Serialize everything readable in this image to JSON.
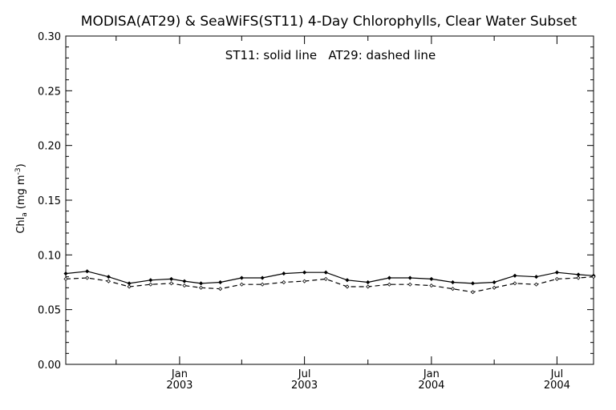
{
  "chart_data": {
    "type": "line",
    "title": "MODISA(AT29) & SeaWiFS(ST11) 4-Day Chlorophylls, Clear Water Subset",
    "annotation": "ST11: solid line   AT29: dashed line",
    "ylabel": "Chl",
    "ylabel_sub": "a",
    "ylabel_units": "(mg m",
    "ylabel_sup": "-3",
    "ylabel_close": ")",
    "ylim": [
      0.0,
      0.3
    ],
    "yticks": [
      "0.00",
      "0.05",
      "0.10",
      "0.15",
      "0.20",
      "0.25",
      "0.30"
    ],
    "xlim": [
      "2002-07-20",
      "2004-08-23"
    ],
    "xticks": [
      {
        "month": "Jan",
        "year": "2003",
        "date": "2003-01-01"
      },
      {
        "month": "Jul",
        "year": "2003",
        "date": "2003-07-01"
      },
      {
        "month": "Jan",
        "year": "2004",
        "date": "2004-01-01"
      },
      {
        "month": "Jul",
        "year": "2004",
        "date": "2004-07-01"
      }
    ],
    "x_minor_dates": [
      "2002-10-01",
      "2003-04-01",
      "2003-10-01",
      "2004-04-01"
    ],
    "grid": false,
    "series": [
      {
        "name": "ST11",
        "style": "solid",
        "x": [
          "2002-07-20",
          "2002-08-20",
          "2002-09-20",
          "2002-10-20",
          "2002-11-20",
          "2002-12-20",
          "2003-01-08",
          "2003-02-01",
          "2003-03-01",
          "2003-04-01",
          "2003-05-01",
          "2003-06-01",
          "2003-07-01",
          "2003-08-01",
          "2003-09-01",
          "2003-10-01",
          "2003-11-01",
          "2003-12-01",
          "2004-01-01",
          "2004-02-01",
          "2004-03-01",
          "2004-04-01",
          "2004-05-01",
          "2004-06-01",
          "2004-07-01",
          "2004-08-01",
          "2004-08-23"
        ],
        "values": [
          0.083,
          0.085,
          0.08,
          0.074,
          0.077,
          0.078,
          0.076,
          0.074,
          0.075,
          0.079,
          0.079,
          0.083,
          0.084,
          0.084,
          0.077,
          0.075,
          0.079,
          0.079,
          0.078,
          0.075,
          0.074,
          0.075,
          0.081,
          0.08,
          0.084,
          0.082,
          0.081
        ]
      },
      {
        "name": "AT29",
        "style": "dashed",
        "x": [
          "2002-07-20",
          "2002-08-20",
          "2002-09-20",
          "2002-10-20",
          "2002-11-20",
          "2002-12-20",
          "2003-01-08",
          "2003-02-01",
          "2003-03-01",
          "2003-04-01",
          "2003-05-01",
          "2003-06-01",
          "2003-07-01",
          "2003-08-01",
          "2003-09-01",
          "2003-10-01",
          "2003-11-01",
          "2003-12-01",
          "2004-01-01",
          "2004-02-01",
          "2004-03-01",
          "2004-04-01",
          "2004-05-01",
          "2004-06-01",
          "2004-07-01",
          "2004-08-01",
          "2004-08-23"
        ],
        "values": [
          0.078,
          0.079,
          0.076,
          0.071,
          0.073,
          0.074,
          0.072,
          0.07,
          0.069,
          0.073,
          0.073,
          0.075,
          0.076,
          0.078,
          0.071,
          0.071,
          0.073,
          0.073,
          0.072,
          0.069,
          0.066,
          0.07,
          0.074,
          0.073,
          0.078,
          0.079,
          0.08
        ]
      }
    ]
  }
}
